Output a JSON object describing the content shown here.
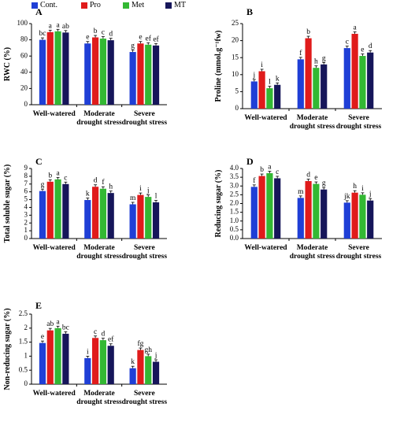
{
  "legend": [
    {
      "name": "Cont.",
      "color": "#1f3fd6"
    },
    {
      "name": "Pro",
      "color": "#e01b1b"
    },
    {
      "name": "Met",
      "color": "#33b833"
    },
    {
      "name": "MT",
      "color": "#16165a"
    }
  ],
  "chart_data": [
    {
      "type": "bar",
      "panel": "A",
      "ylabel": "RWC (%)",
      "ylim": [
        0,
        100
      ],
      "yticks": [
        0,
        20,
        40,
        60,
        80,
        100
      ],
      "categories": [
        "Well-watered",
        "Moderate\ndrought stress",
        "Severe\ndrought stress"
      ],
      "series": [
        {
          "name": "Cont.",
          "values": [
            80,
            75.5,
            65
          ],
          "letters": [
            "bc",
            "e",
            "g"
          ]
        },
        {
          "name": "Pro",
          "values": [
            89.5,
            83,
            75.5
          ],
          "letters": [
            "a",
            "b",
            "e"
          ]
        },
        {
          "name": "Met",
          "values": [
            90.5,
            81.5,
            74
          ],
          "letters": [
            "a",
            "c",
            "ef"
          ]
        },
        {
          "name": "MT",
          "values": [
            89,
            79.5,
            73
          ],
          "letters": [
            "ab",
            "d",
            "ef"
          ]
        }
      ]
    },
    {
      "type": "bar",
      "panel": "B",
      "ylabel": "Proline (mmol.g⁻¹fw)",
      "ylim": [
        0,
        25
      ],
      "yticks": [
        0,
        5,
        10,
        15,
        20,
        25
      ],
      "categories": [
        "Well-watered",
        "Moderate\ndrought stress",
        "Severe\ndrought stress"
      ],
      "series": [
        {
          "name": "Cont.",
          "values": [
            8,
            14.5,
            17.8
          ],
          "letters": [
            "j",
            "f",
            "c"
          ]
        },
        {
          "name": "Pro",
          "values": [
            11,
            20.7,
            22
          ],
          "letters": [
            "i",
            "b",
            "a"
          ]
        },
        {
          "name": "Met",
          "values": [
            6,
            12,
            15.5
          ],
          "letters": [
            "l",
            "h",
            "e"
          ]
        },
        {
          "name": "MT",
          "values": [
            7,
            13,
            16.5
          ],
          "letters": [
            "k",
            "g",
            "d"
          ]
        }
      ]
    },
    {
      "type": "bar",
      "panel": "C",
      "ylabel": "Total soluble sugar (%)",
      "ylim": [
        0,
        9
      ],
      "yticks": [
        0,
        1,
        2,
        3,
        4,
        5,
        6,
        7,
        8,
        9
      ],
      "categories": [
        "Well-watered",
        "Moderate\ndrought stress",
        "Severe\ndrought stress"
      ],
      "series": [
        {
          "name": "Cont.",
          "values": [
            6.1,
            4.95,
            4.4
          ],
          "letters": [
            "g",
            "k",
            "m"
          ]
        },
        {
          "name": "Pro",
          "values": [
            7.3,
            6.65,
            5.6
          ],
          "letters": [
            "b",
            "d",
            "i"
          ]
        },
        {
          "name": "Met",
          "values": [
            7.6,
            6.4,
            5.35
          ],
          "letters": [
            "a",
            "f",
            "j"
          ]
        },
        {
          "name": "MT",
          "values": [
            7.0,
            5.85,
            4.65
          ],
          "letters": [
            "c",
            "h",
            "l"
          ]
        }
      ]
    },
    {
      "type": "bar",
      "panel": "D",
      "ylabel": "Reducing sugar (%)",
      "ylim": [
        0,
        4
      ],
      "yticks": [
        "0.0",
        "0.5",
        "1.0",
        "1.5",
        "2.0",
        "2.5",
        "3.0",
        "3.5",
        "4.0"
      ],
      "categories": [
        "Well-watered",
        "Moderate\ndrought stress",
        "Severe\ndrought stress"
      ],
      "series": [
        {
          "name": "Cont.",
          "values": [
            2.95,
            2.32,
            2.05
          ],
          "letters": [
            "f",
            "m",
            "jk"
          ]
        },
        {
          "name": "Pro",
          "values": [
            3.57,
            3.28,
            2.62
          ],
          "letters": [
            "b",
            "d",
            "h"
          ]
        },
        {
          "name": "Met",
          "values": [
            3.73,
            3.12,
            2.5
          ],
          "letters": [
            "a",
            "e",
            "i"
          ]
        },
        {
          "name": "MT",
          "values": [
            3.44,
            2.8,
            2.17
          ],
          "letters": [
            "c",
            "g",
            "j"
          ]
        }
      ]
    },
    {
      "type": "bar",
      "panel": "E",
      "ylabel": "Non-reducing sugar (%)",
      "ylim": [
        0,
        2.5
      ],
      "yticks": [
        "0",
        "0.5",
        "1",
        "1.5",
        "2",
        "2.5"
      ],
      "categories": [
        "Well-watered",
        "Moderate\ndrought stress",
        "Severe\ndrought stress"
      ],
      "series": [
        {
          "name": "Cont.",
          "values": [
            1.47,
            0.93,
            0.57
          ],
          "letters": [
            "e",
            "i",
            "k"
          ]
        },
        {
          "name": "Pro",
          "values": [
            1.92,
            1.65,
            1.22
          ],
          "letters": [
            "ab",
            "c",
            "fg"
          ]
        },
        {
          "name": "Met",
          "values": [
            2.0,
            1.57,
            1.0
          ],
          "letters": [
            "a",
            "d",
            "gh"
          ]
        },
        {
          "name": "MT",
          "values": [
            1.8,
            1.37,
            0.8
          ],
          "letters": [
            "bc",
            "ef",
            "j"
          ]
        }
      ]
    }
  ]
}
